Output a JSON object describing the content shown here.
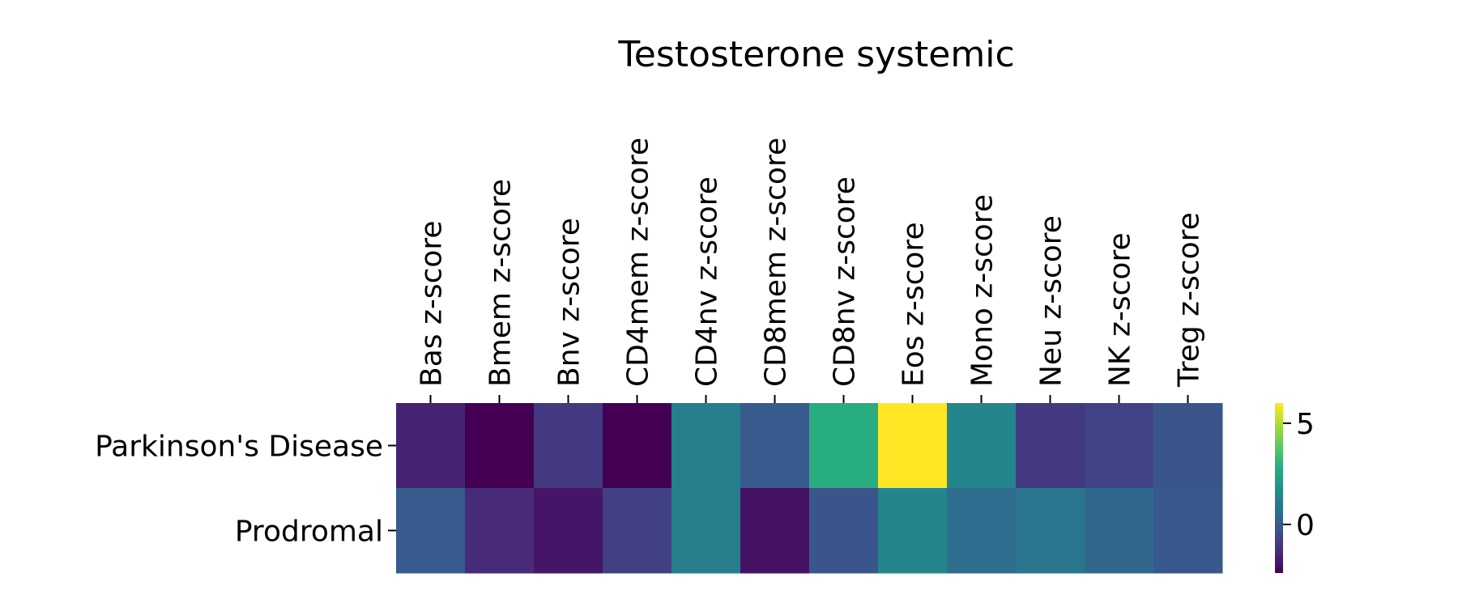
{
  "chart_data": {
    "type": "heatmap",
    "title": "Testosterone systemic",
    "x_categories": [
      "Bas z-score",
      "Bmem z-score",
      "Bnv z-score",
      "CD4mem z-score",
      "CD4nv z-score",
      "CD8mem z-score",
      "CD8nv z-score",
      "Eos z-score",
      "Mono z-score",
      "Neu z-score",
      "NK z-score",
      "Treg z-score"
    ],
    "y_categories": [
      "Parkinson's Disease",
      "Prodromal"
    ],
    "values": [
      [
        -1.6,
        -2.4,
        -1.0,
        -2.4,
        1.2,
        0.0,
        2.8,
        6.0,
        1.4,
        -1.0,
        -0.7,
        -0.2
      ],
      [
        0.0,
        -1.4,
        -1.9,
        -0.8,
        1.2,
        -2.0,
        -0.2,
        1.4,
        0.6,
        0.9,
        0.4,
        -0.1
      ]
    ],
    "colormap": "viridis",
    "vmin": -2.4,
    "vmax": 6.0,
    "colorbar_ticks": [
      0,
      5
    ],
    "x_tick_position": "top",
    "colorbar_position": "right"
  }
}
